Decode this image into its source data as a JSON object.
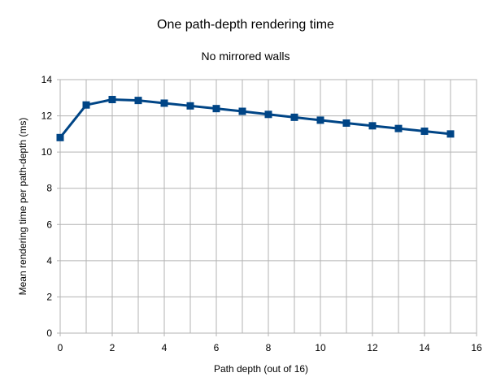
{
  "chart_data": {
    "type": "line",
    "title": "One path-depth rendering time",
    "subtitle": "No mirrored walls",
    "xlabel": "Path depth (out of 16)",
    "ylabel": "Mean rendering time per path-depth (ms)",
    "xlim": [
      0,
      16
    ],
    "ylim": [
      0,
      14
    ],
    "xticks": [
      "0",
      "2",
      "4",
      "6",
      "8",
      "10",
      "12",
      "14",
      "16"
    ],
    "yticks": [
      "0",
      "2",
      "4",
      "6",
      "8",
      "10",
      "12",
      "14"
    ],
    "grid": true,
    "legend": "none",
    "series": [
      {
        "x": [
          0,
          1,
          2,
          3,
          4,
          5,
          6,
          7,
          8,
          9,
          10,
          11,
          12,
          13,
          14,
          15
        ],
        "y": [
          10.8,
          12.6,
          12.9,
          12.85,
          12.7,
          12.55,
          12.4,
          12.25,
          12.08,
          11.92,
          11.76,
          11.6,
          11.45,
          11.3,
          11.15,
          11.0
        ],
        "color": "#004586",
        "marker": "square"
      }
    ]
  }
}
